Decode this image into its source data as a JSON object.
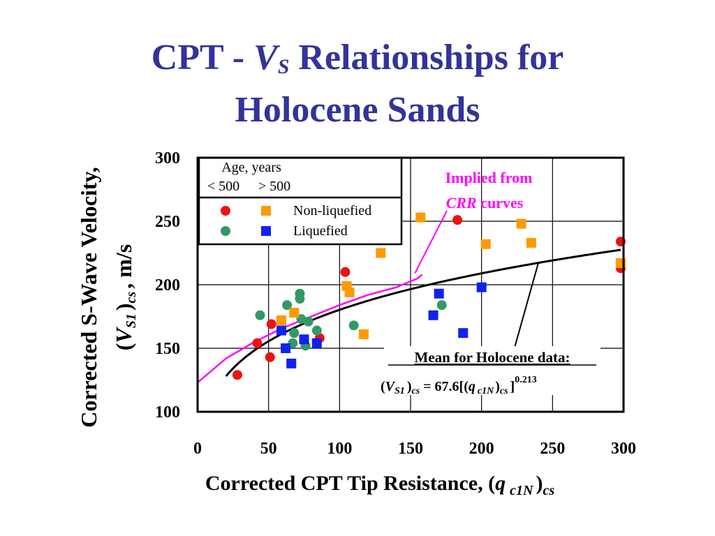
{
  "slide": {
    "title_prefix": "CPT - ",
    "title_v": "V",
    "title_v_sub": "S",
    "title_rest": " Relationships for",
    "title_line2": "Holocene Sands"
  },
  "chart_data": {
    "type": "scatter",
    "xlabel": {
      "text": "Corrected CPT Tip Resistance, (",
      "var": "q",
      "sub": "c1N",
      "close": ")",
      "sub2": "cs"
    },
    "ylabel": {
      "line1": "Corrected S-Wave Velocity,",
      "open": "(",
      "var": "V",
      "sub": "S1",
      "close": ")",
      "sub2": "cs",
      "tail": ", m/s"
    },
    "xlim": [
      0,
      300
    ],
    "ylim": [
      100,
      300
    ],
    "xticks": [
      0,
      50,
      100,
      150,
      200,
      250,
      300
    ],
    "yticks": [
      100,
      150,
      200,
      250,
      300
    ],
    "grid": true,
    "legend": {
      "title": "Age, years",
      "col1": "< 500",
      "col2": "> 500",
      "row1": "Non-liquefied",
      "row2": "Liquefied",
      "placement": "top-left"
    },
    "colors": {
      "young_nonliq": "#ee1111",
      "young_liq": "#339966",
      "old_nonliq": "#ff9900",
      "old_liq": "#1122ee",
      "mean_curve": "#000000",
      "crr_curve": "#ff00ff"
    },
    "series": [
      {
        "marker": "circle",
        "color_key": "young_nonliq",
        "points": [
          [
            28,
            129
          ],
          [
            42,
            154
          ],
          [
            51,
            143
          ],
          [
            52,
            169
          ],
          [
            86,
            158
          ],
          [
            104,
            210
          ],
          [
            183,
            251
          ],
          [
            298,
            234
          ],
          [
            298,
            213
          ]
        ]
      },
      {
        "marker": "circle",
        "color_key": "young_liq",
        "points": [
          [
            44,
            176
          ],
          [
            63,
            184
          ],
          [
            67,
            154
          ],
          [
            68,
            162
          ],
          [
            72,
            193
          ],
          [
            72,
            189
          ],
          [
            73,
            173
          ],
          [
            76,
            152
          ],
          [
            78,
            171
          ],
          [
            84,
            164
          ],
          [
            110,
            168
          ],
          [
            172,
            184
          ]
        ]
      },
      {
        "marker": "square",
        "color_key": "old_nonliq",
        "points": [
          [
            59,
            172
          ],
          [
            68,
            178
          ],
          [
            105,
            199
          ],
          [
            107,
            194
          ],
          [
            117,
            161
          ],
          [
            129,
            225
          ],
          [
            157,
            253
          ],
          [
            203,
            232
          ],
          [
            228,
            248
          ],
          [
            235,
            233
          ],
          [
            298,
            217
          ]
        ]
      },
      {
        "marker": "square",
        "color_key": "old_liq",
        "points": [
          [
            59,
            164
          ],
          [
            62,
            150
          ],
          [
            66,
            138
          ],
          [
            75,
            157
          ],
          [
            84,
            154
          ],
          [
            166,
            176
          ],
          [
            170,
            193
          ],
          [
            187,
            162
          ],
          [
            200,
            198
          ]
        ]
      }
    ],
    "mean_curve": {
      "equation_coef": 67.6,
      "exponent": 0.213,
      "x_range": [
        20,
        298
      ]
    },
    "crr_curve_points": [
      [
        0,
        123
      ],
      [
        20,
        142
      ],
      [
        40,
        155
      ],
      [
        60,
        166
      ],
      [
        80,
        175
      ],
      [
        100,
        184
      ],
      [
        120,
        192
      ],
      [
        140,
        198
      ],
      [
        155,
        205
      ],
      [
        158,
        208
      ]
    ],
    "annotations": {
      "crr_line1": "Implied from",
      "crr_line2_italic": "CRR",
      "crr_line2_rest": " curves",
      "mean_heading": "Mean for Holocene data:",
      "eq_open": "(",
      "eq_v": "V",
      "eq_v_sub": "S1",
      "eq_close": ")",
      "eq_cs1": "cs",
      "eq_mid": " = 67.6[(",
      "eq_q": "q",
      "eq_q_sub": "c1N",
      "eq_close2": ")",
      "eq_cs2": "cs",
      "eq_end": "]",
      "eq_exp": "0.213"
    }
  }
}
